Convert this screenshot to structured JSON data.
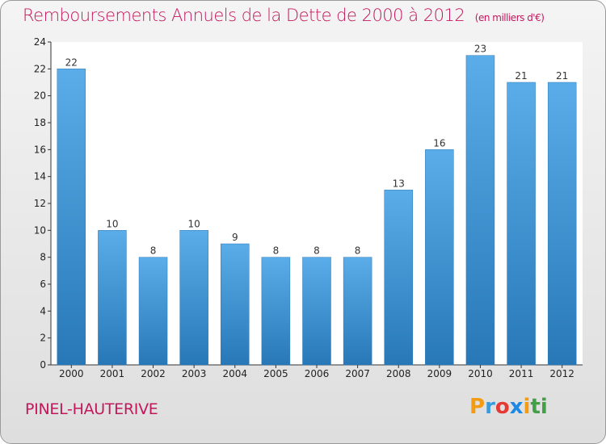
{
  "header": {
    "title": "Remboursements Annuels de la Dette de 2000 à 2012",
    "unit": "(en milliers d'€)"
  },
  "footer": {
    "place": "PINEL-HAUTERIVE",
    "logo": [
      "P",
      "r",
      "o",
      "x",
      "i",
      "ti"
    ]
  },
  "colors": {
    "bar": "#3f95d6",
    "bar_light": "#5aade8",
    "bar_dark": "#2878b8",
    "title": "#c2185b"
  },
  "chart_data": {
    "type": "bar",
    "categories": [
      "2000",
      "2001",
      "2002",
      "2003",
      "2004",
      "2005",
      "2006",
      "2007",
      "2008",
      "2009",
      "2010",
      "2011",
      "2012"
    ],
    "values": [
      22,
      10,
      8,
      10,
      9,
      8,
      8,
      8,
      13,
      16,
      23,
      21,
      21
    ],
    "value_labels": [
      "22",
      "10",
      "8",
      "10",
      "9",
      "8",
      "8",
      "8",
      "13",
      "16",
      "23",
      "21",
      "21"
    ],
    "ylim": [
      0,
      24
    ],
    "yticks": [
      0,
      2,
      4,
      6,
      8,
      10,
      12,
      14,
      16,
      18,
      20,
      22,
      24
    ],
    "ytick_labels": [
      "0",
      "2",
      "4",
      "6",
      "8",
      "10",
      "12",
      "14",
      "16",
      "18",
      "20",
      "22",
      "24"
    ],
    "grid": false
  }
}
